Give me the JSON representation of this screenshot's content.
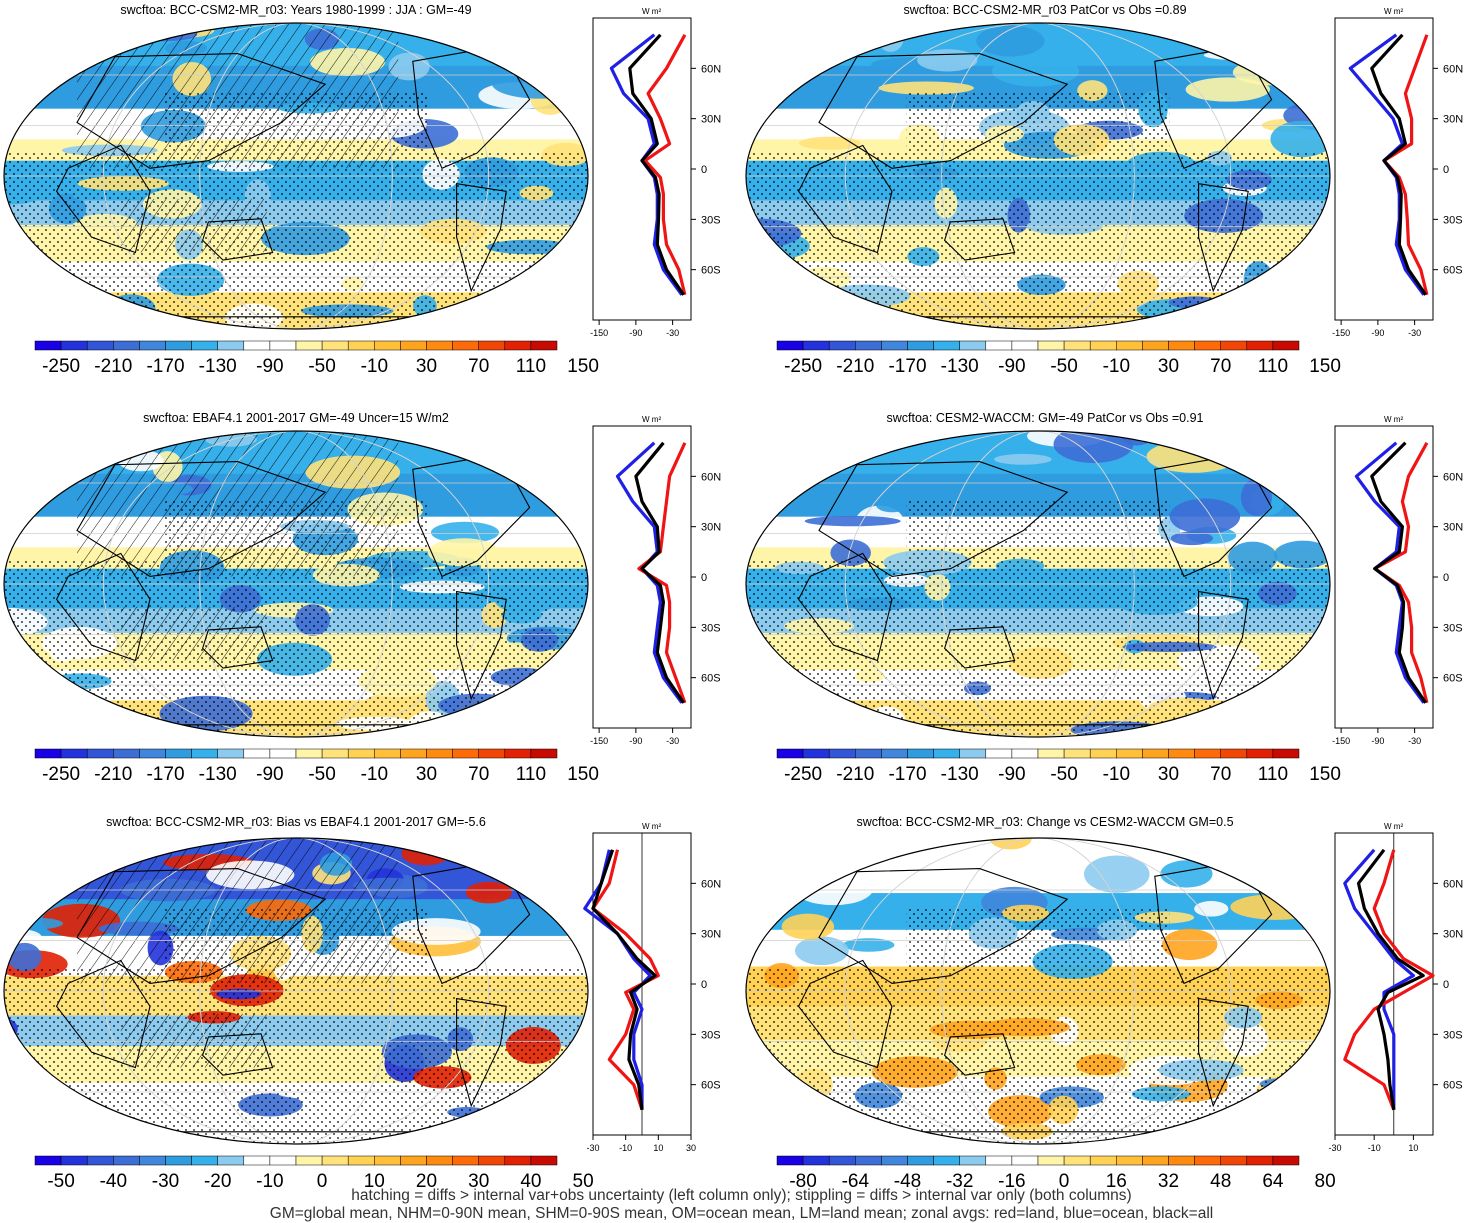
{
  "panels": [
    {
      "title": "swcftoa: BCC-CSM2-MR_r03: Years 1980-1999 : JJA : GM=-49",
      "scale": "abs",
      "hatch": true,
      "variant": 0
    },
    {
      "title": "swcftoa: BCC-CSM2-MR_r03 PatCor vs Obs =0.89",
      "scale": "abs",
      "hatch": false,
      "variant": 1
    },
    {
      "title": "swcftoa: EBAF4.1 2001-2017 GM=-49 Uncer=15 W/m2",
      "scale": "abs",
      "hatch": true,
      "variant": 2
    },
    {
      "title": "swcftoa: CESM2-WACCM: GM=-49 PatCor vs Obs =0.91",
      "scale": "abs",
      "hatch": false,
      "variant": 3
    },
    {
      "title": "swcftoa: BCC-CSM2-MR_r03: Bias vs EBAF4.1 2001-2017 GM=-5.6",
      "scale": "bias",
      "hatch": true,
      "variant": 4
    },
    {
      "title": "swcftoa: BCC-CSM2-MR_r03: Change vs CESM2-WACCM GM=0.5",
      "scale": "change",
      "hatch": false,
      "variant": 5
    }
  ],
  "colorbars": {
    "abs": {
      "labels": [
        "-250",
        "-210",
        "-170",
        "-130",
        "-90",
        "-50",
        "-10",
        "30",
        "70",
        "110",
        "150"
      ]
    },
    "bias": {
      "labels": [
        "-50",
        "-40",
        "-30",
        "-20",
        "-10",
        "0",
        "10",
        "20",
        "30",
        "40",
        "50"
      ]
    },
    "change": {
      "labels": [
        "-80",
        "-64",
        "-48",
        "-32",
        "-16",
        "0",
        "16",
        "32",
        "48",
        "64",
        "80"
      ]
    }
  },
  "colors": [
    "#1a00e6",
    "#2233dd",
    "#3355d8",
    "#3d6ed6",
    "#3f86dc",
    "#2f9ce0",
    "#35b0ea",
    "#8ccbee",
    "#ffffff",
    "#ffffff",
    "#fff5a8",
    "#ffe27a",
    "#ffd256",
    "#ffbf38",
    "#ffa41e",
    "#ff8a10",
    "#ff6a08",
    "#f24606",
    "#e12004",
    "#c80a02"
  ],
  "profile": {
    "unit": "W m²",
    "lat_labels": [
      "60N",
      "30N",
      "0",
      "30S",
      "60S"
    ],
    "abs_ticks": [
      "-150",
      "-90",
      "-30"
    ],
    "bias_ticks": [
      "-30",
      "-10",
      "10",
      "30"
    ],
    "change_ticks": [
      "-30",
      "-10",
      "10"
    ]
  },
  "chart_data": [
    {
      "type": "heatmap",
      "title": "swcftoa: BCC-CSM2-MR_r03: Years 1980-1999 : JJA : GM=-49",
      "colorbar": [
        -250,
        -210,
        -170,
        -130,
        -90,
        -50,
        -10,
        30,
        70,
        110,
        150
      ],
      "zonal_profile": {
        "lat": [
          80,
          60,
          45,
          30,
          15,
          5,
          -5,
          -15,
          -30,
          -45,
          -60,
          -75
        ],
        "land": [
          -10,
          -40,
          -70,
          -50,
          -35,
          -75,
          -50,
          -45,
          -45,
          -40,
          -20,
          -10
        ],
        "ocean": [
          -60,
          -130,
          -110,
          -70,
          -60,
          -80,
          -60,
          -55,
          -55,
          -60,
          -45,
          -15
        ],
        "all": [
          -50,
          -100,
          -95,
          -65,
          -55,
          -80,
          -58,
          -52,
          -53,
          -55,
          -40,
          -12
        ]
      }
    },
    {
      "type": "heatmap",
      "title": "swcftoa: BCC-CSM2-MR_r03 PatCor vs Obs =0.89",
      "colorbar": [
        -250,
        -210,
        -170,
        -130,
        -90,
        -50,
        -10,
        30,
        70,
        110,
        150
      ],
      "zonal_profile": {
        "lat": [
          80,
          60,
          45,
          30,
          15,
          5,
          -5,
          -15,
          -30,
          -45,
          -60,
          -75
        ],
        "land": [
          -10,
          -30,
          -45,
          -35,
          -35,
          -80,
          -55,
          -45,
          -42,
          -40,
          -20,
          -10
        ],
        "ocean": [
          -60,
          -135,
          -100,
          -65,
          -50,
          -80,
          -60,
          -55,
          -55,
          -60,
          -45,
          -15
        ],
        "all": [
          -50,
          -100,
          -85,
          -55,
          -45,
          -80,
          -58,
          -52,
          -53,
          -55,
          -40,
          -12
        ]
      }
    },
    {
      "type": "heatmap",
      "title": "swcftoa: EBAF4.1 2001-2017 GM=-49 Uncer=15 W/m2",
      "colorbar": [
        -250,
        -210,
        -170,
        -130,
        -90,
        -50,
        -10,
        30,
        70,
        110,
        150
      ],
      "zonal_profile": {
        "lat": [
          80,
          60,
          45,
          30,
          15,
          5,
          -5,
          -15,
          -30,
          -45,
          -60,
          -75
        ],
        "land": [
          -10,
          -35,
          -40,
          -45,
          -50,
          -85,
          -40,
          -35,
          -35,
          -40,
          -25,
          -10
        ],
        "ocean": [
          -60,
          -120,
          -95,
          -60,
          -55,
          -80,
          -55,
          -50,
          -55,
          -60,
          -45,
          -15
        ],
        "all": [
          -45,
          -90,
          -80,
          -55,
          -52,
          -80,
          -50,
          -45,
          -50,
          -55,
          -40,
          -12
        ]
      }
    },
    {
      "type": "heatmap",
      "title": "swcftoa: CESM2-WACCM: GM=-49 PatCor vs Obs =0.91",
      "colorbar": [
        -250,
        -210,
        -170,
        -130,
        -90,
        -50,
        -10,
        30,
        70,
        110,
        150
      ],
      "zonal_profile": {
        "lat": [
          80,
          60,
          45,
          30,
          15,
          5,
          -5,
          -15,
          -30,
          -45,
          -60,
          -75
        ],
        "land": [
          -10,
          -40,
          -50,
          -40,
          -45,
          -95,
          -55,
          -40,
          -35,
          -35,
          -20,
          -10
        ],
        "ocean": [
          -60,
          -125,
          -95,
          -55,
          -60,
          -95,
          -60,
          -50,
          -55,
          -60,
          -45,
          -15
        ],
        "all": [
          -45,
          -100,
          -85,
          -50,
          -55,
          -95,
          -58,
          -48,
          -50,
          -55,
          -40,
          -12
        ]
      }
    },
    {
      "type": "heatmap",
      "title": "swcftoa: BCC-CSM2-MR_r03: Bias vs EBAF4.1 2001-2017 GM=-5.6",
      "colorbar": [
        -50,
        -40,
        -30,
        -20,
        -10,
        0,
        10,
        20,
        30,
        40,
        50
      ],
      "zonal_profile": {
        "lat": [
          80,
          60,
          45,
          30,
          15,
          5,
          -5,
          -15,
          -30,
          -45,
          -60,
          -75
        ],
        "land": [
          -15,
          -20,
          -30,
          -10,
          5,
          10,
          -10,
          -5,
          -10,
          -20,
          -5,
          0
        ],
        "ocean": [
          -20,
          -25,
          -35,
          -15,
          -5,
          5,
          -5,
          0,
          -5,
          -5,
          0,
          0
        ],
        "all": [
          -18,
          -25,
          -30,
          -15,
          -3,
          8,
          -7,
          -3,
          -7,
          -8,
          -2,
          0
        ]
      }
    },
    {
      "type": "heatmap",
      "title": "swcftoa: BCC-CSM2-MR_r03: Change vs CESM2-WACCM GM=0.5",
      "colorbar": [
        -80,
        -64,
        -48,
        -32,
        -16,
        0,
        16,
        32,
        48,
        64,
        80
      ],
      "zonal_profile": {
        "lat": [
          80,
          60,
          45,
          30,
          15,
          5,
          -5,
          -15,
          -30,
          -45,
          -60,
          -75
        ],
        "land": [
          0,
          -5,
          -10,
          -5,
          5,
          20,
          5,
          -10,
          -20,
          -25,
          -5,
          0
        ],
        "ocean": [
          -10,
          -25,
          -20,
          -10,
          0,
          10,
          -5,
          -5,
          0,
          0,
          0,
          0
        ],
        "all": [
          -5,
          -18,
          -15,
          -8,
          2,
          15,
          -3,
          -8,
          -5,
          -3,
          -2,
          0
        ]
      }
    }
  ],
  "footer": {
    "line1": "hatching = diffs > internal var+obs uncertainty (left column only); stippling = diffs > internal var only (both columns)",
    "line2": "GM=global mean, NHM=0-90N mean, SHM=0-90S mean, OM=ocean mean, LM=land mean; zonal avgs: red=land, blue=ocean, black=all"
  }
}
